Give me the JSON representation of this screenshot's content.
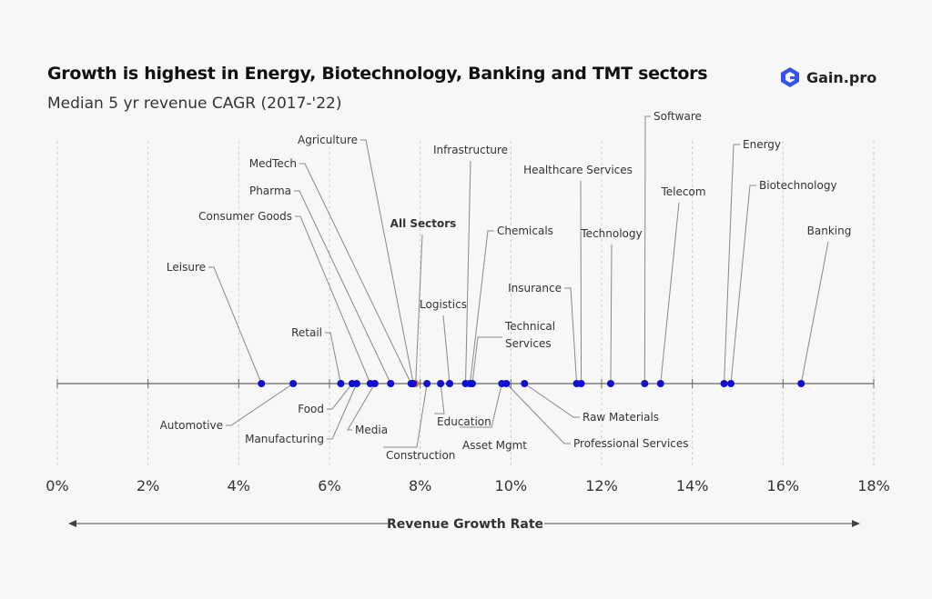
{
  "header": {
    "title": "Growth is highest in Energy, Biotechnology, Banking and TMT sectors",
    "subtitle": "Median 5 yr revenue CAGR (2017-'22)"
  },
  "brand": {
    "name": "Gain.pro",
    "logo_icon": "gain-pro-logo-icon",
    "color": "#3355ee"
  },
  "colors": {
    "point": "#1010d0",
    "highlight": "#e07b45",
    "leader": "#888888",
    "grid": "#cccccc",
    "axis": "#666666"
  },
  "chart_data": {
    "type": "scatter",
    "title": "Growth is highest in Energy, Biotechnology, Banking and TMT sectors",
    "subtitle": "Median 5 yr revenue CAGR (2017-'22)",
    "xlabel": "Revenue Growth Rate",
    "xlim": [
      0,
      18
    ],
    "x_unit": "%",
    "xticks": [
      0,
      2,
      4,
      6,
      8,
      10,
      12,
      14,
      16,
      18
    ],
    "xtick_labels": [
      "0%",
      "2%",
      "4%",
      "6%",
      "8%",
      "10%",
      "12%",
      "14%",
      "16%",
      "18%"
    ],
    "grid": true,
    "points": [
      {
        "label": "Leisure",
        "x": 4.5
      },
      {
        "label": "Automotive",
        "x": 5.2
      },
      {
        "label": "Retail",
        "x": 6.25
      },
      {
        "label": "Food",
        "x": 6.5
      },
      {
        "label": "Manufacturing",
        "x": 6.6
      },
      {
        "label": "Consumer Goods",
        "x": 6.9
      },
      {
        "label": "Media",
        "x": 7.0
      },
      {
        "label": "Pharma",
        "x": 7.35
      },
      {
        "label": "MedTech",
        "x": 7.8
      },
      {
        "label": "All Sectors",
        "x": 7.9,
        "highlight": true
      },
      {
        "label": "Agriculture",
        "x": 7.85
      },
      {
        "label": "Construction",
        "x": 8.15
      },
      {
        "label": "Education",
        "x": 8.45
      },
      {
        "label": "Logistics",
        "x": 8.65
      },
      {
        "label": "Infrastructure",
        "x": 9.0
      },
      {
        "label": "Chemicals",
        "x": 9.1
      },
      {
        "label": "Technical Services",
        "x": 9.15
      },
      {
        "label": "Asset Mgmt",
        "x": 9.8
      },
      {
        "label": "Professional Services",
        "x": 9.9
      },
      {
        "label": "Raw Materials",
        "x": 10.3
      },
      {
        "label": "Insurance",
        "x": 11.45
      },
      {
        "label": "Healthcare Services",
        "x": 11.55
      },
      {
        "label": "Technology",
        "x": 12.2
      },
      {
        "label": "Software",
        "x": 12.95
      },
      {
        "label": "Telecom",
        "x": 13.3
      },
      {
        "label": "Energy",
        "x": 14.7
      },
      {
        "label": "Biotechnology",
        "x": 14.85
      },
      {
        "label": "Banking",
        "x": 16.4
      }
    ]
  }
}
